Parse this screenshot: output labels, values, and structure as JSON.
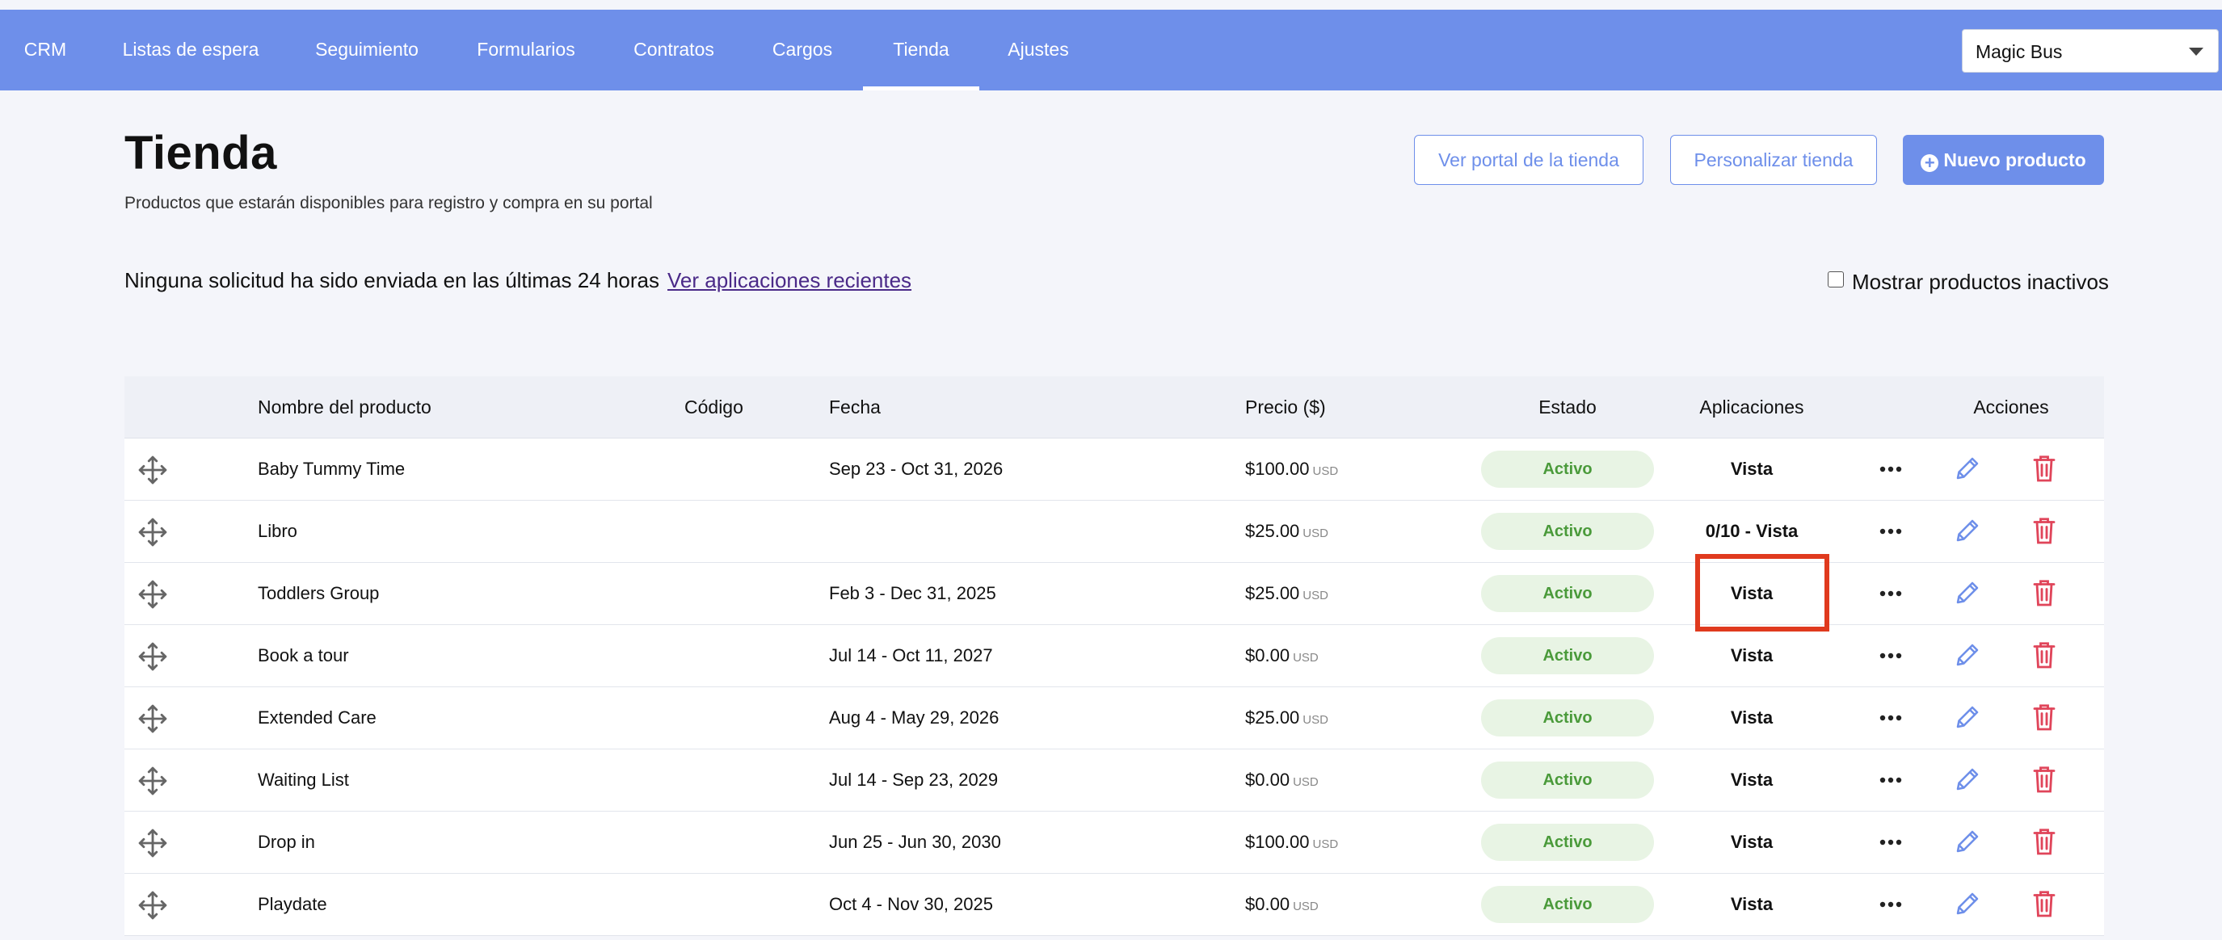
{
  "nav": {
    "items": [
      "CRM",
      "Listas de espera",
      "Seguimiento",
      "Formularios",
      "Contratos",
      "Cargos",
      "Tienda",
      "Ajustes"
    ],
    "active": "Tienda",
    "company_select": "Magic Bus"
  },
  "header": {
    "title": "Tienda",
    "subtitle": "Productos que estarán disponibles para registro y compra en su portal",
    "view_portal_label": "Ver portal de la tienda",
    "customize_label": "Personalizar tienda",
    "new_product_label": "Nuevo producto"
  },
  "notice": {
    "text": "Ninguna solicitud ha sido enviada en las últimas 24 horas",
    "link": " Ver aplicaciones recientes",
    "inactive_label": "Mostrar productos inactivos"
  },
  "table": {
    "headers": {
      "name": "Nombre del producto",
      "code": "Código",
      "date": "Fecha",
      "price": "Precio ($)",
      "status": "Estado",
      "apps": "Aplicaciones",
      "actions": "Acciones"
    },
    "rows": [
      {
        "name": "Baby Tummy Time",
        "code": "",
        "date": "Sep 23 - Oct 31, 2026",
        "price": "$100.00",
        "currency": "USD",
        "status": "Activo",
        "apps": "Vista"
      },
      {
        "name": "Libro",
        "code": "",
        "date": "",
        "price": "$25.00",
        "currency": "USD",
        "status": "Activo",
        "apps": "0/10 - Vista"
      },
      {
        "name": "Toddlers Group",
        "code": "",
        "date": "Feb 3 - Dec 31, 2025",
        "price": "$25.00",
        "currency": "USD",
        "status": "Activo",
        "apps": "Vista"
      },
      {
        "name": "Book a tour",
        "code": "",
        "date": "Jul 14 - Oct 11, 2027",
        "price": "$0.00",
        "currency": "USD",
        "status": "Activo",
        "apps": "Vista"
      },
      {
        "name": "Extended Care",
        "code": "",
        "date": "Aug 4 - May 29, 2026",
        "price": "$25.00",
        "currency": "USD",
        "status": "Activo",
        "apps": "Vista"
      },
      {
        "name": "Waiting List",
        "code": "",
        "date": "Jul 14 - Sep 23, 2029",
        "price": "$0.00",
        "currency": "USD",
        "status": "Activo",
        "apps": "Vista"
      },
      {
        "name": "Drop in",
        "code": "",
        "date": "Jun 25 - Jun 30, 2030",
        "price": "$100.00",
        "currency": "USD",
        "status": "Activo",
        "apps": "Vista"
      },
      {
        "name": "Playdate",
        "code": "",
        "date": "Oct 4 - Nov 30, 2025",
        "price": "$0.00",
        "currency": "USD",
        "status": "Activo",
        "apps": "Vista"
      }
    ]
  },
  "colors": {
    "brand": "#6e8fea",
    "status_bg": "#e8f4e4",
    "status_text": "#4a9a3a",
    "delete": "#e0455a",
    "highlight": "#e03a1e"
  }
}
